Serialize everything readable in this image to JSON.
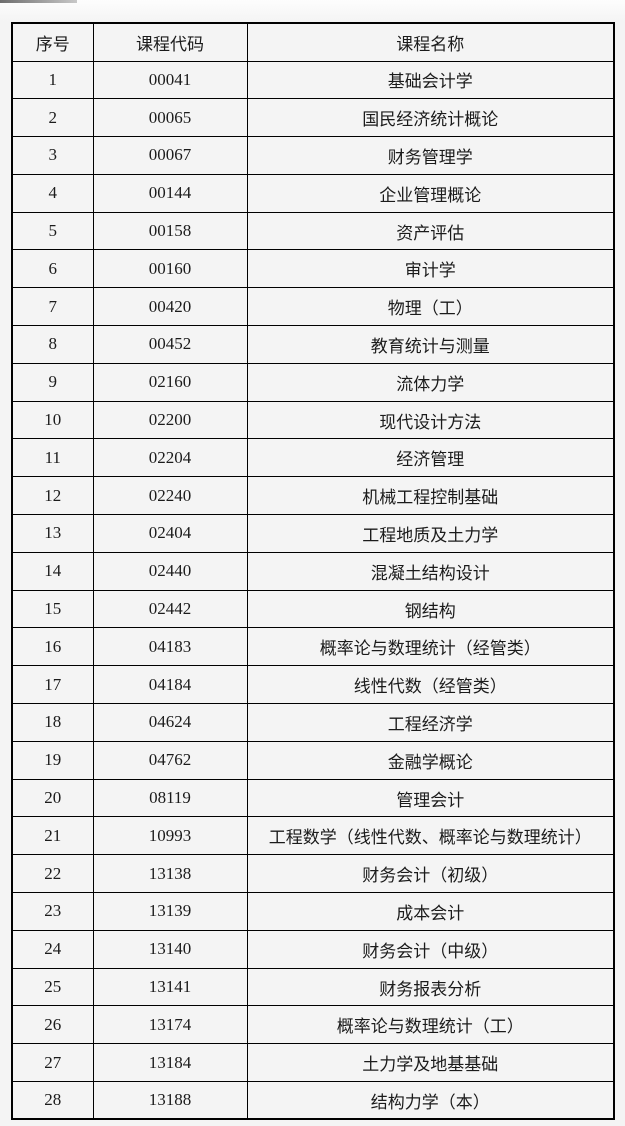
{
  "colors": {
    "page_background": "#f4f4f4",
    "table_border": "#000000",
    "text": "#1b1b1b",
    "corner_artifact": "#6e6e6e"
  },
  "table": {
    "headers": [
      "序号",
      "课程代码",
      "课程名称"
    ],
    "rows": [
      [
        "1",
        "00041",
        "基础会计学"
      ],
      [
        "2",
        "00065",
        "国民经济统计概论"
      ],
      [
        "3",
        "00067",
        "财务管理学"
      ],
      [
        "4",
        "00144",
        "企业管理概论"
      ],
      [
        "5",
        "00158",
        "资产评估"
      ],
      [
        "6",
        "00160",
        "审计学"
      ],
      [
        "7",
        "00420",
        "物理（工）"
      ],
      [
        "8",
        "00452",
        "教育统计与测量"
      ],
      [
        "9",
        "02160",
        "流体力学"
      ],
      [
        "10",
        "02200",
        "现代设计方法"
      ],
      [
        "11",
        "02204",
        "经济管理"
      ],
      [
        "12",
        "02240",
        "机械工程控制基础"
      ],
      [
        "13",
        "02404",
        "工程地质及土力学"
      ],
      [
        "14",
        "02440",
        "混凝土结构设计"
      ],
      [
        "15",
        "02442",
        "钢结构"
      ],
      [
        "16",
        "04183",
        "概率论与数理统计（经管类）"
      ],
      [
        "17",
        "04184",
        "线性代数（经管类）"
      ],
      [
        "18",
        "04624",
        "工程经济学"
      ],
      [
        "19",
        "04762",
        "金融学概论"
      ],
      [
        "20",
        "08119",
        "管理会计"
      ],
      [
        "21",
        "10993",
        "工程数学（线性代数、概率论与数理统计）"
      ],
      [
        "22",
        "13138",
        "财务会计（初级）"
      ],
      [
        "23",
        "13139",
        "成本会计"
      ],
      [
        "24",
        "13140",
        "财务会计（中级）"
      ],
      [
        "25",
        "13141",
        "财务报表分析"
      ],
      [
        "26",
        "13174",
        "概率论与数理统计（工）"
      ],
      [
        "27",
        "13184",
        "土力学及地基基础"
      ],
      [
        "28",
        "13188",
        "结构力学（本）"
      ]
    ]
  }
}
